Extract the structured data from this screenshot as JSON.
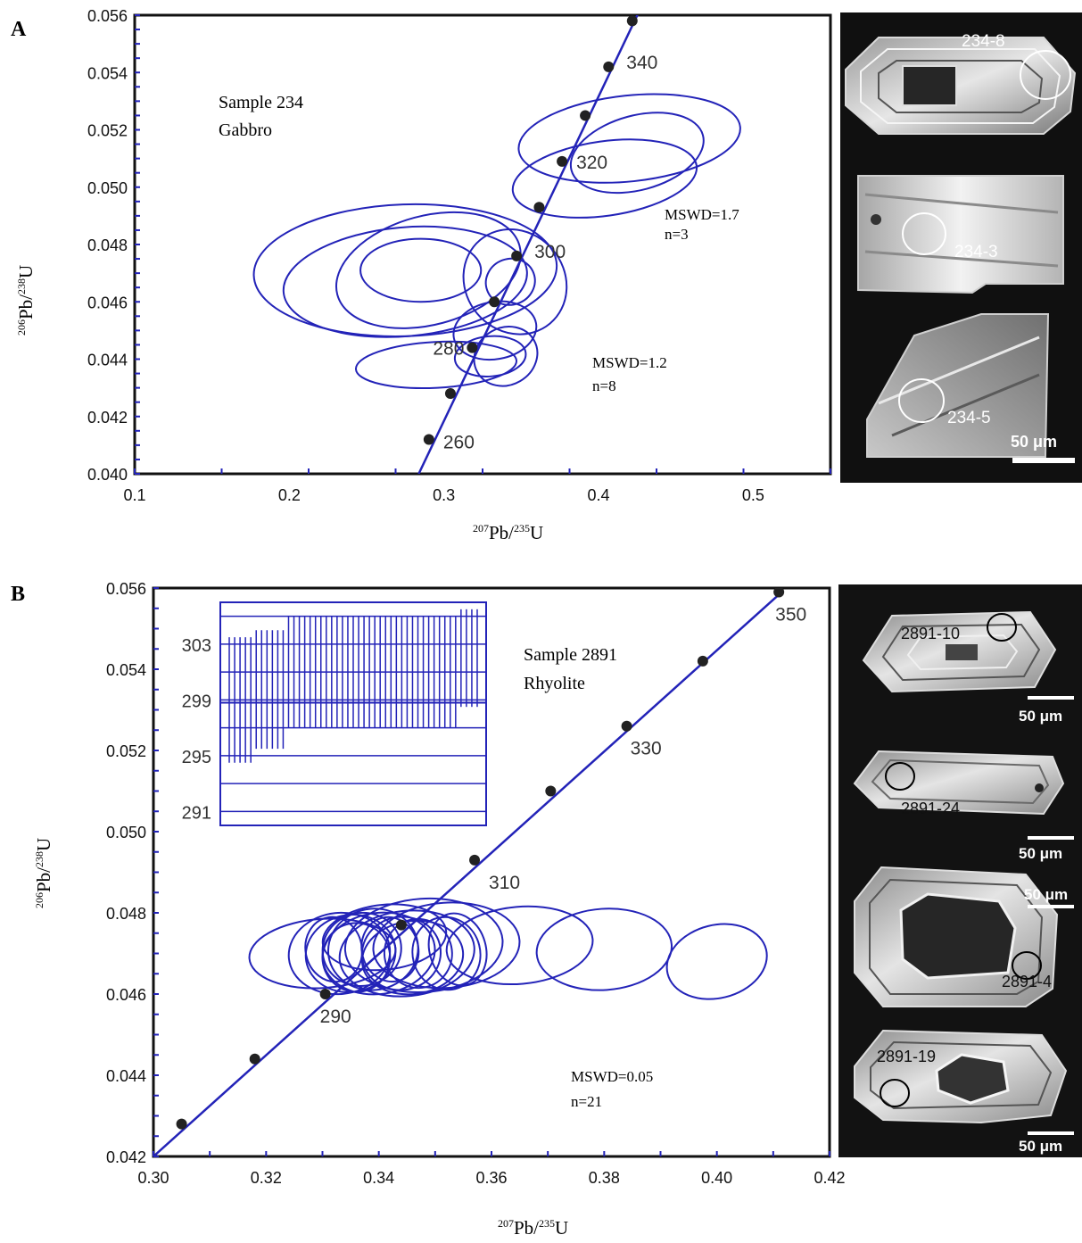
{
  "panels": [
    {
      "panel_label": "A",
      "sample_line1": "Sample 234",
      "sample_line2": "Gabbro",
      "stats": [
        {
          "mswd": "MSWD=1.7",
          "n": "n=3"
        },
        {
          "mswd": "MSWD=1.2",
          "n": "n=8"
        }
      ],
      "xlabel": {
        "sup1": "207",
        "pb": "Pb/",
        "sup2": "235",
        "u": "U"
      },
      "ylabel": {
        "sup1": "206",
        "pb": "Pb/",
        "sup2": "238",
        "u": "U"
      },
      "crystals": [
        {
          "label": "234-8"
        },
        {
          "label": "234-3"
        },
        {
          "label": "234-5"
        }
      ],
      "scalebar_label": "50 μm"
    },
    {
      "panel_label": "B",
      "sample_line1": "Sample 2891",
      "sample_line2": "Rhyolite",
      "stats": [
        {
          "mswd": "MSWD=0.05",
          "n": "n=21"
        }
      ],
      "xlabel": {
        "sup1": "207",
        "pb": "Pb/",
        "sup2": "235",
        "u": "U"
      },
      "ylabel": {
        "sup1": "206",
        "pb": "Pb/",
        "sup2": "238",
        "u": "U"
      },
      "crystals": [
        {
          "label": "2891-10",
          "scale": "50 μm"
        },
        {
          "label": "2891-24",
          "scale": "50 μm"
        },
        {
          "label": "2891-4",
          "scale": "50 μm"
        },
        {
          "label": "2891-19",
          "scale": "50 μm"
        }
      ],
      "inset": {
        "yticks": [
          "303",
          "299",
          "295",
          "291"
        ],
        "ylim": [
          290,
          306
        ],
        "mean": 298.8,
        "bars": [
          [
            294.5,
            303.5
          ],
          [
            294.5,
            303.5
          ],
          [
            294.5,
            303.5
          ],
          [
            294.5,
            303.5
          ],
          [
            294.5,
            303.5
          ],
          [
            295.5,
            304
          ],
          [
            295.5,
            304
          ],
          [
            295.5,
            304
          ],
          [
            295.5,
            304
          ],
          [
            295.5,
            304
          ],
          [
            295.5,
            304
          ],
          [
            297,
            305
          ],
          [
            297,
            305
          ],
          [
            297,
            305
          ],
          [
            297,
            305
          ],
          [
            297,
            305
          ],
          [
            297,
            305
          ],
          [
            297,
            305
          ],
          [
            297,
            305
          ],
          [
            297,
            305
          ],
          [
            297,
            305
          ],
          [
            297,
            305
          ],
          [
            297,
            305
          ],
          [
            297,
            305
          ],
          [
            297,
            305
          ],
          [
            297,
            305
          ],
          [
            297,
            305
          ],
          [
            297,
            305
          ],
          [
            297,
            305
          ],
          [
            297,
            305
          ],
          [
            297,
            305
          ],
          [
            297,
            305
          ],
          [
            297,
            305
          ],
          [
            297,
            305
          ],
          [
            297,
            305
          ],
          [
            297,
            305
          ],
          [
            297,
            305
          ],
          [
            297,
            305
          ],
          [
            297,
            305
          ],
          [
            297,
            305
          ],
          [
            297,
            305
          ],
          [
            297,
            305
          ],
          [
            297,
            305
          ],
          [
            298.5,
            305.5
          ],
          [
            298.5,
            305.5
          ],
          [
            298.5,
            305.5
          ],
          [
            298.5,
            305.5
          ]
        ]
      }
    }
  ],
  "chart_data": [
    {
      "type": "scatter",
      "title": "",
      "xlabel": "207Pb/235U",
      "ylabel": "206Pb/238U",
      "xlim": [
        0.1,
        0.55
      ],
      "ylim": [
        0.04,
        0.056
      ],
      "xticks": [
        "0.1",
        "0.2",
        "0.3",
        "0.4",
        "0.5"
      ],
      "xtick_values": [
        0.1,
        0.2,
        0.3,
        0.4,
        0.5
      ],
      "yticks": [
        "0.040",
        "0.042",
        "0.044",
        "0.046",
        "0.048",
        "0.050",
        "0.052",
        "0.054",
        "0.056"
      ],
      "ytick_values": [
        0.04,
        0.042,
        0.044,
        0.046,
        0.048,
        0.05,
        0.052,
        0.054,
        0.056
      ],
      "grid": false,
      "concordia": {
        "x": [
          0.2837,
          0.4295
        ],
        "y": [
          0.04,
          0.0565
        ]
      },
      "age_markers": [
        {
          "age": "260",
          "x": 0.2903,
          "y": 0.0412,
          "label": true
        },
        {
          "age": "",
          "x": 0.3042,
          "y": 0.0428,
          "label": false
        },
        {
          "age": "280",
          "x": 0.3183,
          "y": 0.0444,
          "label": true
        },
        {
          "age": "",
          "x": 0.3326,
          "y": 0.046,
          "label": false
        },
        {
          "age": "300",
          "x": 0.347,
          "y": 0.0476,
          "label": true
        },
        {
          "age": "",
          "x": 0.3616,
          "y": 0.0493,
          "label": false
        },
        {
          "age": "320",
          "x": 0.3764,
          "y": 0.0509,
          "label": true
        },
        {
          "age": "",
          "x": 0.3914,
          "y": 0.0525,
          "label": false
        },
        {
          "age": "340",
          "x": 0.4065,
          "y": 0.0542,
          "label": true
        },
        {
          "age": "",
          "x": 0.4218,
          "y": 0.0558,
          "label": false
        }
      ],
      "ellipses": [
        {
          "cx": 0.275,
          "cy": 0.0471,
          "rx": 0.098,
          "ry": 0.0023,
          "angle_deg": 2
        },
        {
          "cx": 0.275,
          "cy": 0.0467,
          "rx": 0.079,
          "ry": 0.0019,
          "angle_deg": 5
        },
        {
          "cx": 0.29,
          "cy": 0.0471,
          "rx": 0.061,
          "ry": 0.0019,
          "angle_deg": 15
        },
        {
          "cx": 0.285,
          "cy": 0.0471,
          "rx": 0.039,
          "ry": 0.0011,
          "angle_deg": 0
        },
        {
          "cx": 0.42,
          "cy": 0.0517,
          "rx": 0.072,
          "ry": 0.0015,
          "angle_deg": 6
        },
        {
          "cx": 0.404,
          "cy": 0.0503,
          "rx": 0.06,
          "ry": 0.0013,
          "angle_deg": 8
        },
        {
          "cx": 0.425,
          "cy": 0.0512,
          "rx": 0.044,
          "ry": 0.0013,
          "angle_deg": 15
        },
        {
          "cx": 0.346,
          "cy": 0.0467,
          "rx": 0.032,
          "ry": 0.0019,
          "angle_deg": 40
        },
        {
          "cx": 0.343,
          "cy": 0.0467,
          "rx": 0.016,
          "ry": 0.0008,
          "angle_deg": 20
        },
        {
          "cx": 0.333,
          "cy": 0.045,
          "rx": 0.027,
          "ry": 0.001,
          "angle_deg": 10
        },
        {
          "cx": 0.33,
          "cy": 0.0441,
          "rx": 0.023,
          "ry": 0.0007,
          "angle_deg": 5
        },
        {
          "cx": 0.34,
          "cy": 0.0441,
          "rx": 0.021,
          "ry": 0.001,
          "angle_deg": 30
        },
        {
          "cx": 0.295,
          "cy": 0.0438,
          "rx": 0.052,
          "ry": 0.0008,
          "angle_deg": 3
        }
      ]
    },
    {
      "type": "scatter",
      "title": "",
      "xlabel": "207Pb/235U",
      "ylabel": "206Pb/238U",
      "xlim": [
        0.3,
        0.42
      ],
      "ylim": [
        0.042,
        0.056
      ],
      "xticks": [
        "0.30",
        "0.32",
        "0.34",
        "0.36",
        "0.38",
        "0.40",
        "0.42"
      ],
      "xtick_values": [
        0.3,
        0.32,
        0.34,
        0.36,
        0.38,
        0.4,
        0.42
      ],
      "yticks": [
        "0.042",
        "0.044",
        "0.046",
        "0.048",
        "0.050",
        "0.052",
        "0.054",
        "0.056"
      ],
      "ytick_values": [
        0.042,
        0.044,
        0.046,
        0.048,
        0.05,
        0.052,
        0.054,
        0.056
      ],
      "grid": false,
      "concordia": {
        "x": [
          0.3,
          0.4115
        ],
        "y": [
          0.042,
          0.0559
        ]
      },
      "age_markers": [
        {
          "age": "",
          "x": 0.305,
          "y": 0.0428,
          "label": false
        },
        {
          "age": "",
          "x": 0.318,
          "y": 0.0444,
          "label": false
        },
        {
          "age": "290",
          "x": 0.3305,
          "y": 0.046,
          "label": true
        },
        {
          "age": "",
          "x": 0.344,
          "y": 0.0477,
          "label": false
        },
        {
          "age": "310",
          "x": 0.357,
          "y": 0.0493,
          "label": true
        },
        {
          "age": "",
          "x": 0.3705,
          "y": 0.051,
          "label": false
        },
        {
          "age": "330",
          "x": 0.384,
          "y": 0.0526,
          "label": true
        },
        {
          "age": "",
          "x": 0.3975,
          "y": 0.0542,
          "label": false
        },
        {
          "age": "350",
          "x": 0.411,
          "y": 0.0559,
          "label": true
        }
      ],
      "ellipses": [
        {
          "cx": 0.348,
          "cy": 0.0472,
          "rx": 0.014,
          "ry": 0.00115,
          "angle_deg": 4
        },
        {
          "cx": 0.352,
          "cy": 0.0472,
          "rx": 0.013,
          "ry": 0.00105,
          "angle_deg": 4
        },
        {
          "cx": 0.345,
          "cy": 0.047,
          "rx": 0.012,
          "ry": 0.00105,
          "angle_deg": 6
        },
        {
          "cx": 0.34,
          "cy": 0.047,
          "rx": 0.01,
          "ry": 0.001,
          "angle_deg": 8
        },
        {
          "cx": 0.335,
          "cy": 0.047,
          "rx": 0.008,
          "ry": 0.00095,
          "angle_deg": 10
        },
        {
          "cx": 0.337,
          "cy": 0.0471,
          "rx": 0.007,
          "ry": 0.0009,
          "angle_deg": 12
        },
        {
          "cx": 0.333,
          "cy": 0.047,
          "rx": 0.009,
          "ry": 0.001,
          "angle_deg": 6
        },
        {
          "cx": 0.339,
          "cy": 0.0471,
          "rx": 0.008,
          "ry": 0.001,
          "angle_deg": 10
        },
        {
          "cx": 0.344,
          "cy": 0.047,
          "rx": 0.007,
          "ry": 0.0009,
          "angle_deg": 10
        },
        {
          "cx": 0.347,
          "cy": 0.047,
          "rx": 0.006,
          "ry": 0.00085,
          "angle_deg": 12
        },
        {
          "cx": 0.342,
          "cy": 0.0471,
          "rx": 0.005,
          "ry": 0.0008,
          "angle_deg": 15
        },
        {
          "cx": 0.336,
          "cy": 0.0469,
          "rx": 0.006,
          "ry": 0.00085,
          "angle_deg": 12
        },
        {
          "cx": 0.332,
          "cy": 0.0471,
          "rx": 0.005,
          "ry": 0.0008,
          "angle_deg": 12
        },
        {
          "cx": 0.341,
          "cy": 0.0474,
          "rx": 0.011,
          "ry": 0.0008,
          "angle_deg": 6
        },
        {
          "cx": 0.346,
          "cy": 0.0469,
          "rx": 0.009,
          "ry": 0.0009,
          "angle_deg": 8
        },
        {
          "cx": 0.352,
          "cy": 0.047,
          "rx": 0.006,
          "ry": 0.0009,
          "angle_deg": 14
        },
        {
          "cx": 0.354,
          "cy": 0.0471,
          "rx": 0.005,
          "ry": 0.0009,
          "angle_deg": 16
        },
        {
          "cx": 0.33,
          "cy": 0.047,
          "rx": 0.013,
          "ry": 0.00085,
          "angle_deg": 4
        },
        {
          "cx": 0.365,
          "cy": 0.0472,
          "rx": 0.013,
          "ry": 0.00095,
          "angle_deg": 5
        },
        {
          "cx": 0.38,
          "cy": 0.0471,
          "rx": 0.012,
          "ry": 0.001,
          "angle_deg": 4
        },
        {
          "cx": 0.4,
          "cy": 0.0468,
          "rx": 0.009,
          "ry": 0.0009,
          "angle_deg": 14
        }
      ]
    }
  ]
}
